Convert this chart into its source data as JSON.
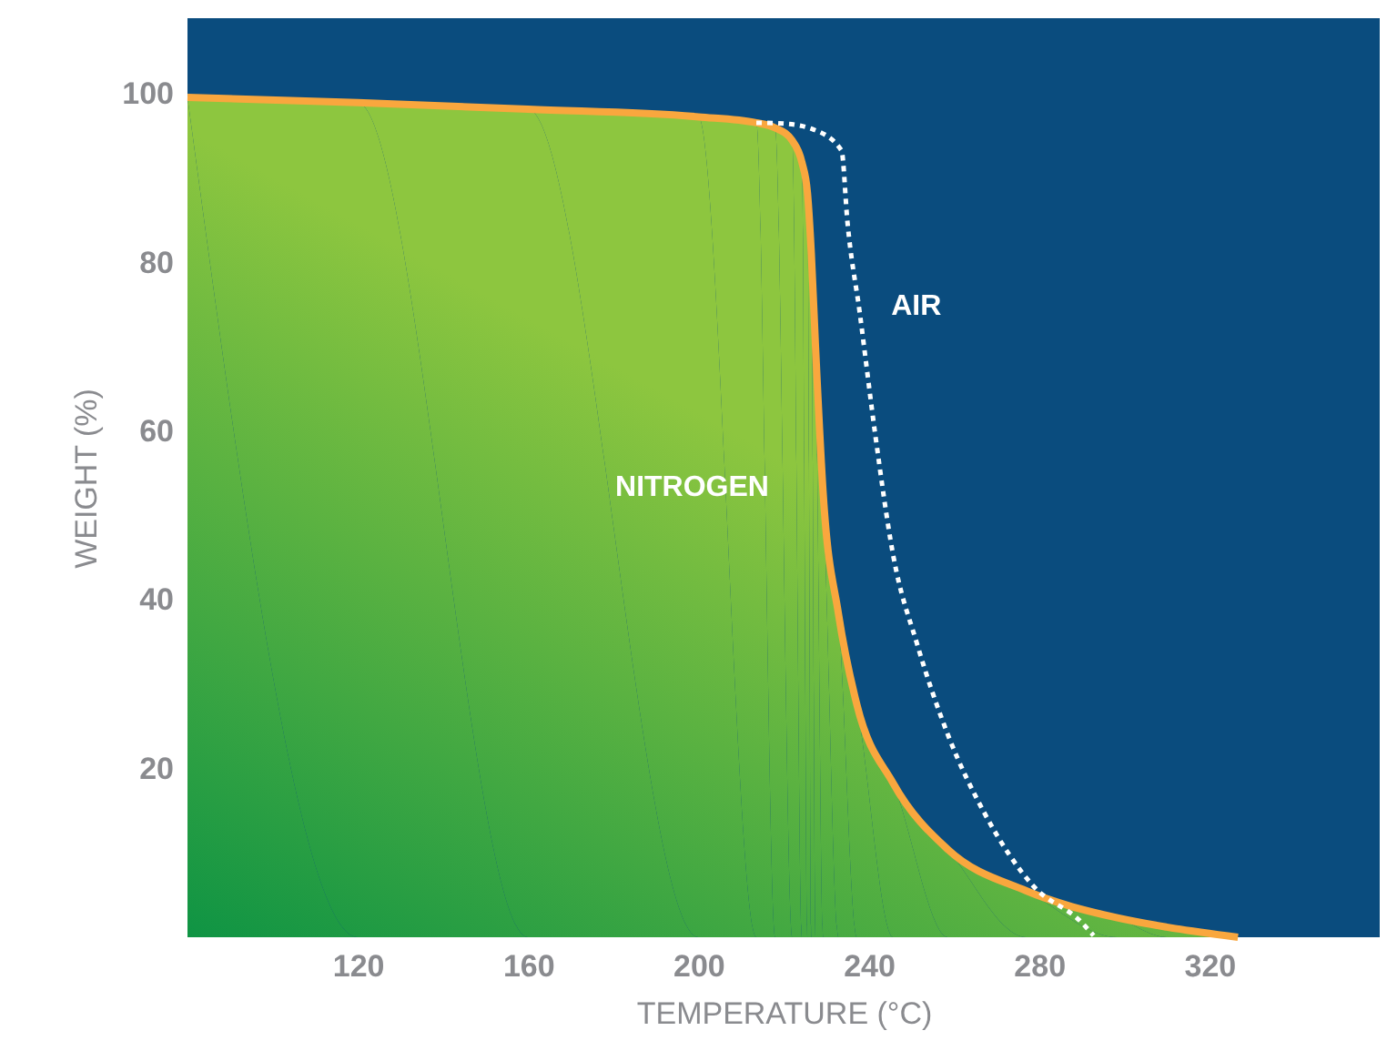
{
  "chart_data": {
    "type": "line",
    "xlabel": "TEMPERATURE (°C)",
    "ylabel": "WEIGHT (%)",
    "xlim": [
      80,
      360
    ],
    "ylim": [
      0,
      109
    ],
    "xticks": [
      120,
      160,
      200,
      240,
      280,
      320
    ],
    "yticks": [
      20,
      40,
      60,
      80,
      100
    ],
    "grid": false,
    "legend": false,
    "marker": "none",
    "series": [
      {
        "type": "area",
        "name": "NITROGEN",
        "color": "#f9a73e",
        "x": [
          80,
          120,
          160,
          200,
          213.6,
          218,
          222,
          224.3,
          225.6,
          226.5,
          227.5,
          229.3,
          232.9,
          237.2,
          245.7,
          258.6,
          277,
          298.4,
          310,
          326.7
        ],
        "values": [
          99.6,
          99.0,
          98.2,
          97.3,
          96.6,
          96.0,
          94.5,
          91.9,
          88.3,
          81.2,
          70,
          52.6,
          38.3,
          27.6,
          18.3,
          10.4,
          5.5,
          2.3,
          1.2,
          0
        ]
      },
      {
        "name": "AIR",
        "color": "#ffffff",
        "line_style": "dashed",
        "x": [
          213.6,
          220,
          227,
          233.6,
          235,
          237.9,
          241.5,
          245.7,
          251.4,
          258.6,
          267.2,
          278.6,
          289.9,
          292.8
        ],
        "values": [
          96.6,
          96.5,
          95.8,
          93.3,
          84.8,
          74,
          59.7,
          45.4,
          34.7,
          24,
          14.7,
          6.1,
          1.8,
          0.2
        ]
      }
    ]
  }
}
